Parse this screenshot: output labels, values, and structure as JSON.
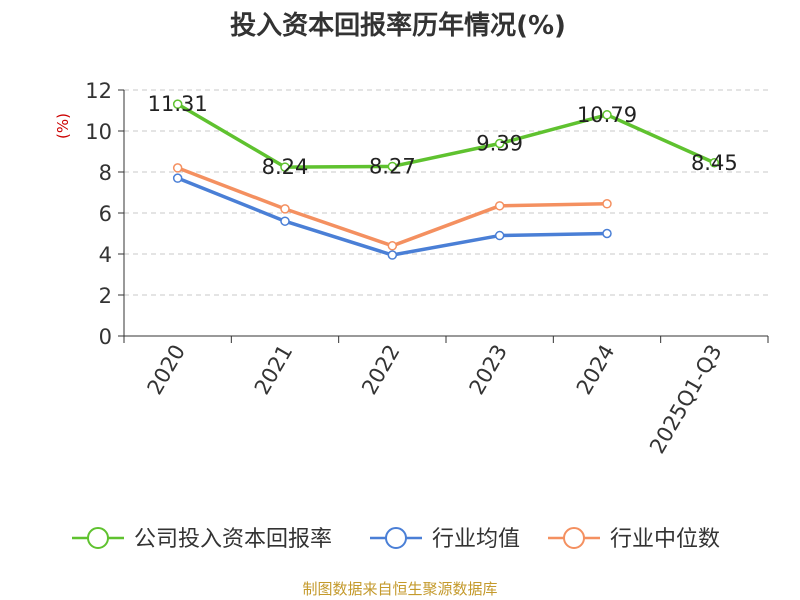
{
  "chart_data": {
    "type": "line",
    "title": "投入资本回报率历年情况(%)",
    "ylabel": "(%)",
    "ylim": [
      0,
      12
    ],
    "yticks": [
      0,
      2,
      4,
      6,
      8,
      10,
      12
    ],
    "grid": true,
    "legend_position": "bottom",
    "categories": [
      "2020",
      "2021",
      "2022",
      "2023",
      "2024",
      "2025Q1-Q3"
    ],
    "series": [
      {
        "name": "公司投入资本回报率",
        "color": "#5fc22f",
        "values": [
          11.31,
          8.24,
          8.27,
          9.39,
          10.79,
          8.45
        ],
        "labels": [
          "11.31",
          "8.24",
          "8.27",
          "9.39",
          "10.79",
          "8.45"
        ]
      },
      {
        "name": "行业均值",
        "color": "#4a7fd6",
        "values": [
          7.7,
          5.6,
          3.95,
          4.9,
          5.0,
          null
        ]
      },
      {
        "name": "行业中位数",
        "color": "#f49060",
        "values": [
          8.2,
          6.2,
          4.4,
          6.35,
          6.45,
          null
        ]
      }
    ]
  },
  "footer": {
    "source": "制图数据来自恒生聚源数据库"
  }
}
